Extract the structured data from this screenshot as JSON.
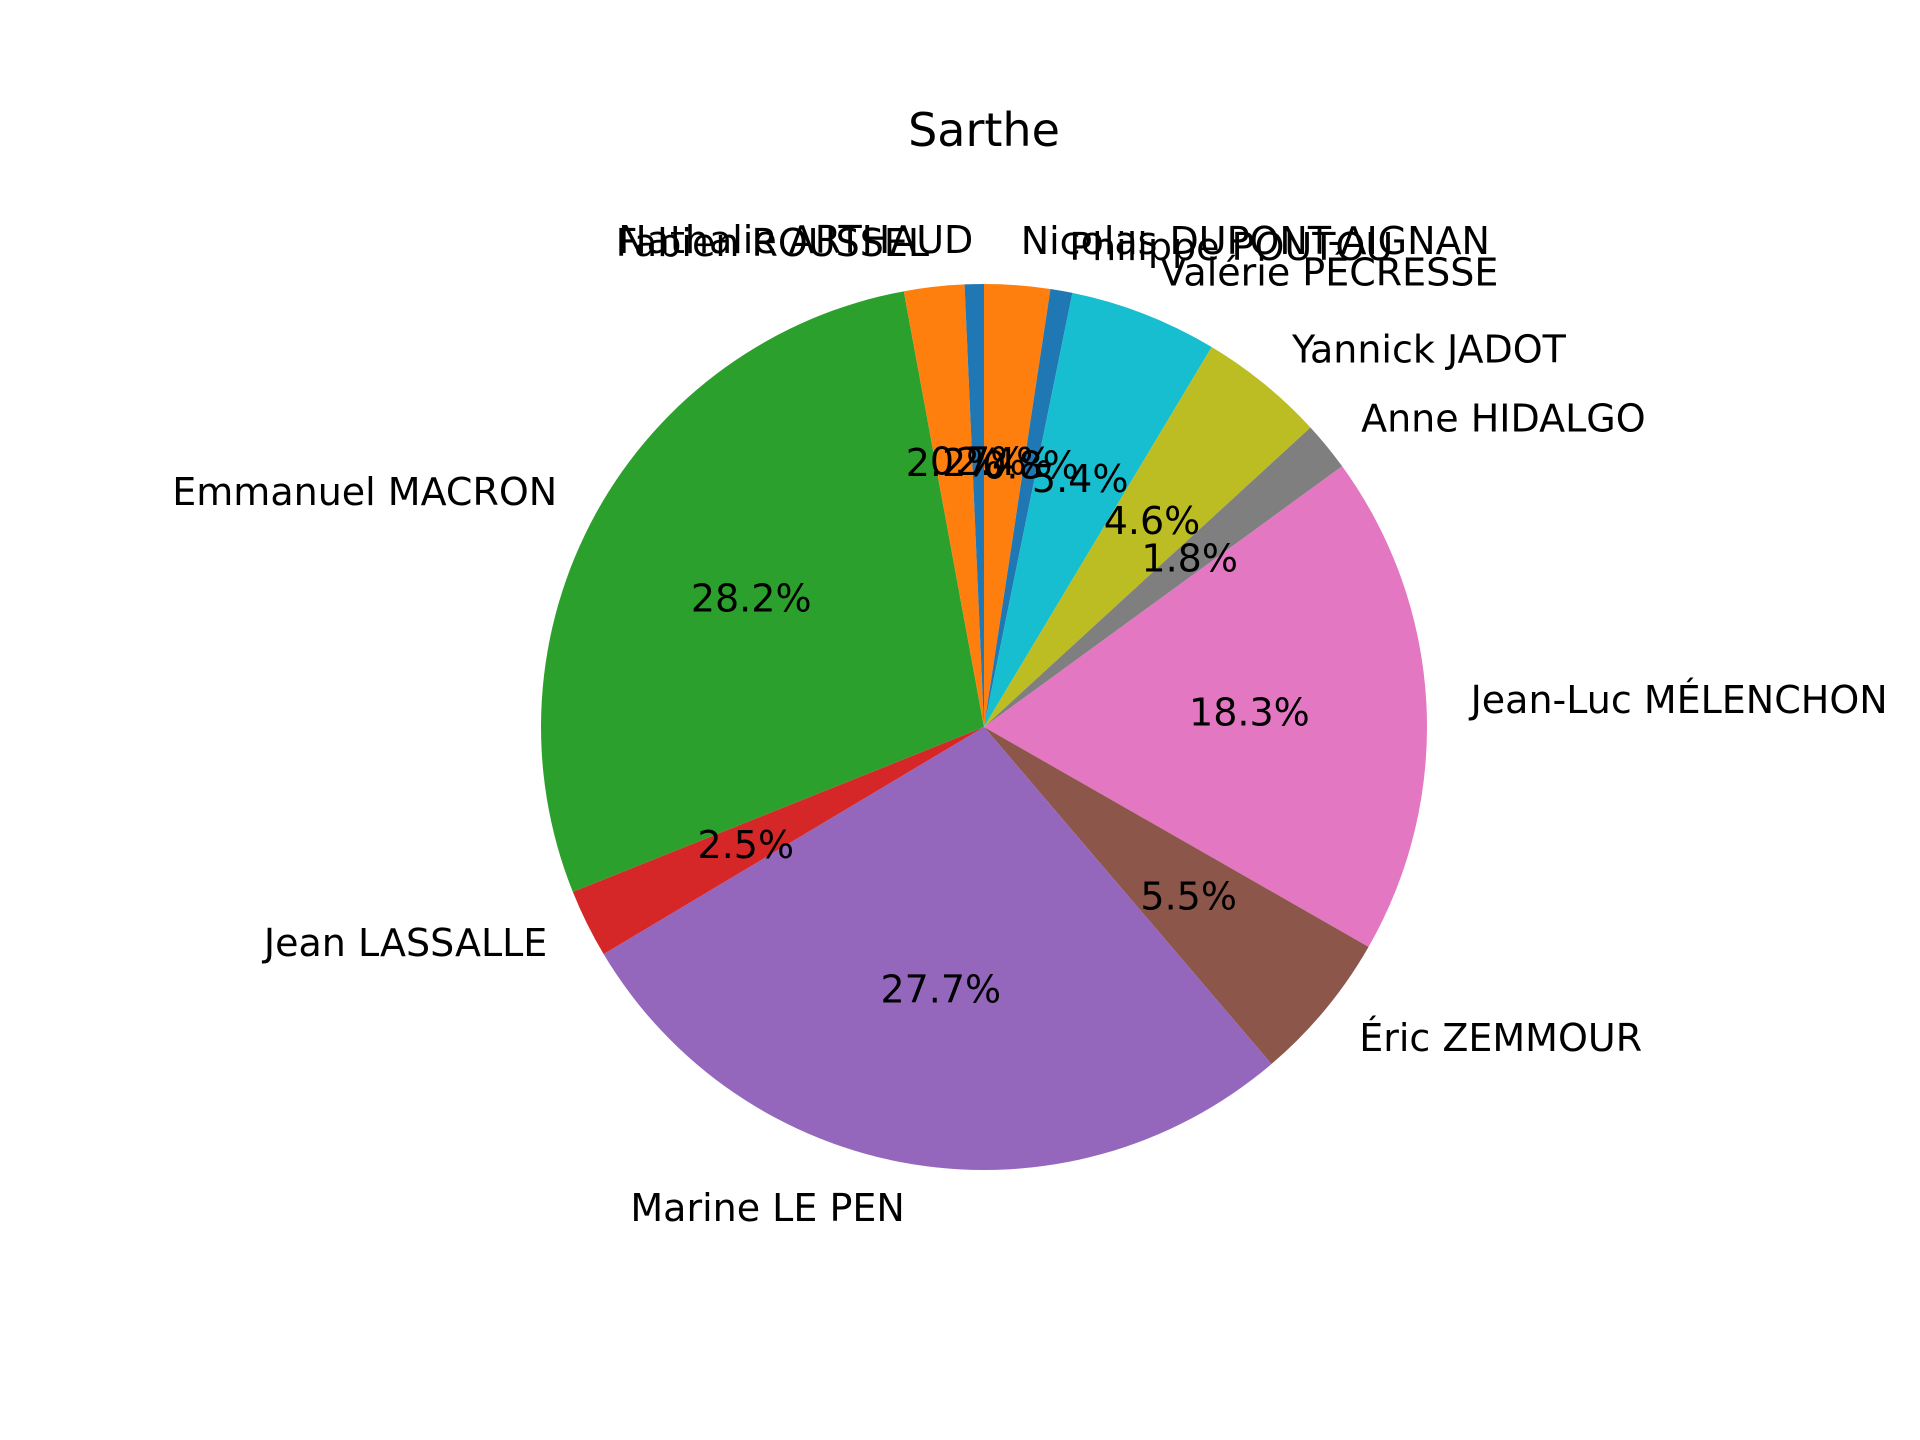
{
  "chart_data": {
    "type": "pie",
    "title": "Sarthe",
    "start_angle_deg": 90,
    "direction": "clockwise",
    "value_format": "percent_1dp",
    "slices": [
      {
        "name": "Nicolas DUPONT-AIGNAN",
        "pct_label": "2.4%",
        "value": 2.4,
        "color": "#ff7f0e"
      },
      {
        "name": "Philippe POUTOU",
        "pct_label": "0.8%",
        "value": 0.8,
        "color": "#1f77b4"
      },
      {
        "name": "Valérie PÉCRESSE",
        "pct_label": "5.4%",
        "value": 5.4,
        "color": "#17becf"
      },
      {
        "name": "Yannick JADOT",
        "pct_label": "4.6%",
        "value": 4.6,
        "color": "#bcbd22"
      },
      {
        "name": "Anne HIDALGO",
        "pct_label": "1.8%",
        "value": 1.8,
        "color": "#7f7f7f"
      },
      {
        "name": "Jean-Luc MÉLENCHON",
        "pct_label": "18.3%",
        "value": 18.3,
        "color": "#e377c2"
      },
      {
        "name": "Éric ZEMMOUR",
        "pct_label": "5.5%",
        "value": 5.5,
        "color": "#8c564b"
      },
      {
        "name": "Marine LE PEN",
        "pct_label": "27.7%",
        "value": 27.7,
        "color": "#9467bd"
      },
      {
        "name": "Jean LASSALLE",
        "pct_label": "2.5%",
        "value": 2.5,
        "color": "#d62728"
      },
      {
        "name": "Emmanuel MACRON",
        "pct_label": "28.2%",
        "value": 28.2,
        "color": "#2ca02c"
      },
      {
        "name": "Fabien ROUSSEL",
        "pct_label": "2.2%",
        "value": 2.2,
        "color": "#ff7f0e"
      },
      {
        "name": "Nathalie ARTHAUD",
        "pct_label": "0.7%",
        "value": 0.7,
        "color": "#1f77b4"
      }
    ]
  }
}
